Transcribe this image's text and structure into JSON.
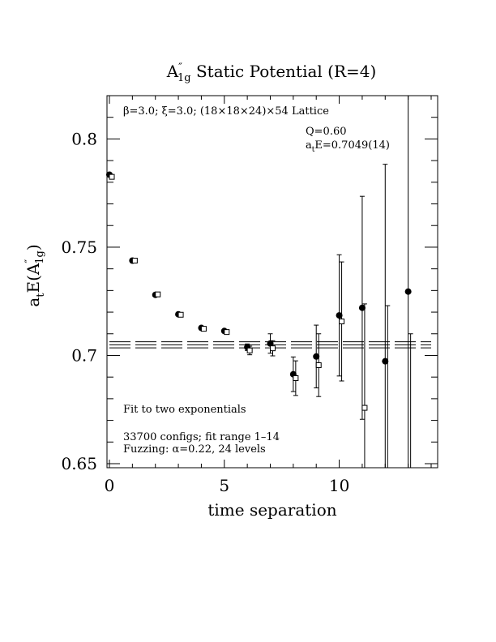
{
  "chart_data": {
    "type": "scatter",
    "title": {
      "main": "A",
      "sup": "″",
      "sub": "1g",
      "rest": " Static Potential (R=4)"
    },
    "ylabel": {
      "prefix": "a",
      "prefix_sub": "t",
      "mid": "E(A",
      "sup": "″",
      "sub": "1g",
      "close": ")"
    },
    "xlabel": "time separation",
    "xlim": [
      0,
      14
    ],
    "ylim": [
      0.65,
      0.82
    ],
    "x_ticks": [
      0,
      5,
      10
    ],
    "y_ticks": [
      0.65,
      0.7,
      0.75,
      0.8
    ],
    "x_tick_labels": [
      "0",
      "5",
      "10"
    ],
    "y_tick_labels": [
      "0.65",
      "0.7",
      "0.75",
      "0.8"
    ],
    "annotations": {
      "lattice": "β=3.0; ξ=3.0; (18×18×24)×54 Lattice",
      "q": "Q=0.60",
      "fit_prefix": "a",
      "fit_prefix_sub": "t",
      "fit_rest": "E=0.7049(14)",
      "fit_type": "Fit to two exponentials",
      "configs": "33700 configs; fit range 1–14",
      "fuzzing": "Fuzzing: α=0.22, 24 levels"
    },
    "fit": {
      "value": 0.7049,
      "error": 0.0014,
      "x_range": [
        0,
        14
      ]
    },
    "series": [
      {
        "marker": "filled-circle",
        "points": [
          {
            "x": 0,
            "y": 0.7835
          },
          {
            "x": 1,
            "y": 0.7438
          },
          {
            "x": 2,
            "y": 0.728
          },
          {
            "x": 3,
            "y": 0.719
          },
          {
            "x": 4,
            "y": 0.7127
          },
          {
            "x": 5,
            "y": 0.7113
          },
          {
            "x": 6,
            "y": 0.7038,
            "err": 0.0015
          },
          {
            "x": 7,
            "y": 0.7055,
            "err": 0.0045
          },
          {
            "x": 8,
            "y": 0.6913,
            "err": 0.008
          },
          {
            "x": 9,
            "y": 0.6995,
            "err": 0.0145
          },
          {
            "x": 10,
            "y": 0.7185,
            "err": 0.028
          },
          {
            "x": 11,
            "y": 0.722,
            "err": 0.0515
          },
          {
            "x": 12,
            "y": 0.6973,
            "err": 0.091
          },
          {
            "x": 13,
            "y": 0.7295,
            "err": 0.16
          }
        ]
      },
      {
        "marker": "open-square",
        "points": [
          {
            "x": 0,
            "y": 0.7825
          },
          {
            "x": 1,
            "y": 0.7438
          },
          {
            "x": 2,
            "y": 0.7282
          },
          {
            "x": 3,
            "y": 0.7188
          },
          {
            "x": 4,
            "y": 0.7123
          },
          {
            "x": 5,
            "y": 0.7108
          },
          {
            "x": 6,
            "y": 0.7023,
            "err": 0.002
          },
          {
            "x": 7,
            "y": 0.7033,
            "err": 0.0035
          },
          {
            "x": 8,
            "y": 0.6895,
            "err": 0.008
          },
          {
            "x": 9,
            "y": 0.6955,
            "err": 0.0145
          },
          {
            "x": 10,
            "y": 0.7157,
            "err": 0.0275
          },
          {
            "x": 11,
            "y": 0.6758,
            "err": 0.048
          },
          {
            "x": 12,
            "y": 0.65,
            "err": 0.073
          },
          {
            "x": 13,
            "y": 0.65,
            "err": 0.06
          }
        ]
      }
    ]
  }
}
